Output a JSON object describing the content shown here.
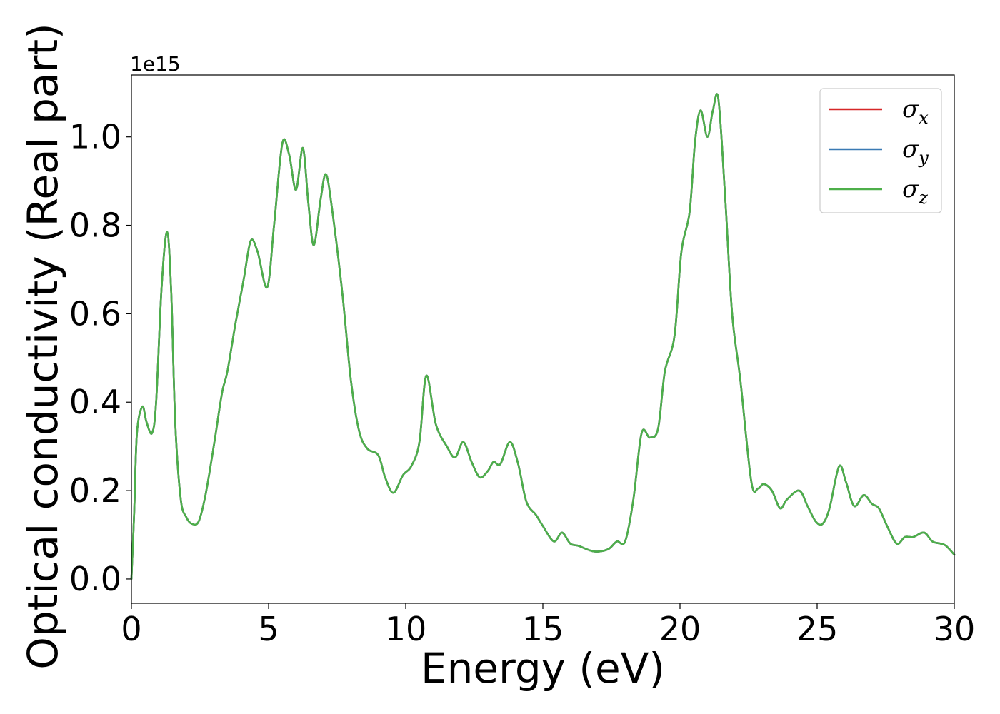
{
  "chart_data": {
    "type": "line",
    "title": "",
    "xlabel": "Energy (eV)",
    "ylabel": "Optical conductivity (Real part)",
    "y_offset_label": "1e15",
    "xlim": [
      0,
      30
    ],
    "ylim": [
      -0.055,
      1.14
    ],
    "xticks": [
      0,
      5,
      10,
      15,
      20,
      25,
      30
    ],
    "xtick_labels": [
      "0",
      "5",
      "10",
      "15",
      "20",
      "25",
      "30"
    ],
    "yticks": [
      0.0,
      0.2,
      0.4,
      0.6,
      0.8,
      1.0
    ],
    "ytick_labels": [
      "0.0",
      "0.2",
      "0.4",
      "0.6",
      "0.8",
      "1.0"
    ],
    "grid": false,
    "legend_position": "top-right",
    "x": [
      0,
      0.1,
      0.2,
      0.4,
      0.55,
      0.75,
      0.9,
      1.1,
      1.3,
      1.45,
      1.6,
      1.8,
      2.0,
      2.2,
      2.45,
      2.7,
      3.0,
      3.3,
      3.5,
      3.8,
      4.1,
      4.35,
      4.6,
      4.95,
      5.2,
      5.5,
      5.75,
      6.0,
      6.25,
      6.45,
      6.65,
      6.9,
      7.1,
      7.35,
      7.7,
      8.0,
      8.3,
      8.6,
      9.0,
      9.25,
      9.55,
      9.9,
      10.2,
      10.5,
      10.75,
      11.1,
      11.5,
      11.8,
      12.1,
      12.4,
      12.7,
      13.0,
      13.2,
      13.45,
      13.8,
      14.1,
      14.4,
      14.75,
      15.0,
      15.4,
      15.7,
      16.0,
      16.3,
      16.7,
      17.0,
      17.4,
      17.7,
      18.0,
      18.3,
      18.6,
      18.9,
      19.2,
      19.45,
      19.8,
      20.05,
      20.35,
      20.55,
      20.75,
      21.0,
      21.2,
      21.4,
      21.65,
      21.9,
      22.2,
      22.6,
      22.85,
      23.05,
      23.35,
      23.65,
      23.9,
      24.35,
      24.65,
      24.95,
      25.2,
      25.45,
      25.8,
      26.05,
      26.35,
      26.7,
      27.0,
      27.25,
      27.55,
      27.9,
      28.2,
      28.5,
      28.9,
      29.2,
      29.5,
      29.7,
      30.0
    ],
    "series": [
      {
        "name": "x",
        "color": "#d62728",
        "values": [
          0.0,
          0.15,
          0.33,
          0.39,
          0.355,
          0.33,
          0.4,
          0.66,
          0.785,
          0.65,
          0.35,
          0.18,
          0.14,
          0.125,
          0.13,
          0.19,
          0.3,
          0.42,
          0.47,
          0.58,
          0.68,
          0.765,
          0.74,
          0.66,
          0.8,
          0.985,
          0.96,
          0.88,
          0.975,
          0.85,
          0.755,
          0.86,
          0.915,
          0.82,
          0.64,
          0.45,
          0.335,
          0.295,
          0.28,
          0.23,
          0.195,
          0.235,
          0.255,
          0.31,
          0.46,
          0.35,
          0.3,
          0.275,
          0.31,
          0.265,
          0.23,
          0.245,
          0.265,
          0.26,
          0.31,
          0.26,
          0.175,
          0.145,
          0.12,
          0.085,
          0.105,
          0.08,
          0.075,
          0.065,
          0.062,
          0.068,
          0.085,
          0.085,
          0.18,
          0.33,
          0.32,
          0.34,
          0.47,
          0.55,
          0.74,
          0.83,
          0.99,
          1.06,
          1.0,
          1.06,
          1.085,
          0.86,
          0.6,
          0.45,
          0.22,
          0.205,
          0.215,
          0.2,
          0.16,
          0.18,
          0.2,
          0.165,
          0.13,
          0.125,
          0.16,
          0.255,
          0.22,
          0.165,
          0.19,
          0.17,
          0.16,
          0.12,
          0.08,
          0.095,
          0.095,
          0.105,
          0.085,
          0.08,
          0.075,
          0.055
        ]
      },
      {
        "name": "y",
        "color": "#3a7ab4",
        "values": [
          0.0,
          0.15,
          0.33,
          0.39,
          0.355,
          0.33,
          0.4,
          0.66,
          0.785,
          0.65,
          0.35,
          0.18,
          0.14,
          0.125,
          0.13,
          0.19,
          0.3,
          0.42,
          0.47,
          0.58,
          0.68,
          0.765,
          0.74,
          0.66,
          0.8,
          0.985,
          0.96,
          0.88,
          0.975,
          0.85,
          0.755,
          0.86,
          0.915,
          0.82,
          0.64,
          0.45,
          0.335,
          0.295,
          0.28,
          0.23,
          0.195,
          0.235,
          0.255,
          0.31,
          0.46,
          0.35,
          0.3,
          0.275,
          0.31,
          0.265,
          0.23,
          0.245,
          0.265,
          0.26,
          0.31,
          0.26,
          0.175,
          0.145,
          0.12,
          0.085,
          0.105,
          0.08,
          0.075,
          0.065,
          0.062,
          0.068,
          0.085,
          0.085,
          0.18,
          0.33,
          0.32,
          0.34,
          0.47,
          0.55,
          0.74,
          0.83,
          0.99,
          1.06,
          1.0,
          1.06,
          1.085,
          0.86,
          0.6,
          0.45,
          0.22,
          0.205,
          0.215,
          0.2,
          0.16,
          0.18,
          0.2,
          0.165,
          0.13,
          0.125,
          0.16,
          0.255,
          0.22,
          0.165,
          0.19,
          0.17,
          0.16,
          0.12,
          0.08,
          0.095,
          0.095,
          0.105,
          0.085,
          0.08,
          0.075,
          0.055
        ]
      },
      {
        "name": "z",
        "color": "#4daf4a",
        "values": [
          0.0,
          0.15,
          0.33,
          0.39,
          0.355,
          0.33,
          0.4,
          0.66,
          0.785,
          0.65,
          0.35,
          0.18,
          0.14,
          0.125,
          0.13,
          0.19,
          0.3,
          0.42,
          0.47,
          0.58,
          0.68,
          0.765,
          0.74,
          0.66,
          0.8,
          0.985,
          0.96,
          0.88,
          0.975,
          0.85,
          0.755,
          0.86,
          0.915,
          0.82,
          0.64,
          0.45,
          0.335,
          0.295,
          0.28,
          0.23,
          0.195,
          0.235,
          0.255,
          0.31,
          0.46,
          0.35,
          0.3,
          0.275,
          0.31,
          0.265,
          0.23,
          0.245,
          0.265,
          0.26,
          0.31,
          0.26,
          0.175,
          0.145,
          0.12,
          0.085,
          0.105,
          0.08,
          0.075,
          0.065,
          0.062,
          0.068,
          0.085,
          0.085,
          0.18,
          0.33,
          0.32,
          0.34,
          0.47,
          0.55,
          0.74,
          0.83,
          0.99,
          1.06,
          1.0,
          1.06,
          1.085,
          0.86,
          0.6,
          0.45,
          0.22,
          0.205,
          0.215,
          0.2,
          0.16,
          0.18,
          0.2,
          0.165,
          0.13,
          0.125,
          0.16,
          0.255,
          0.22,
          0.165,
          0.19,
          0.17,
          0.16,
          0.12,
          0.08,
          0.095,
          0.095,
          0.105,
          0.085,
          0.08,
          0.075,
          0.055
        ]
      }
    ],
    "legend": [
      {
        "symbol": "σ",
        "subscript": "x",
        "color": "#d62728"
      },
      {
        "symbol": "σ",
        "subscript": "y",
        "color": "#3a7ab4"
      },
      {
        "symbol": "σ",
        "subscript": "z",
        "color": "#4daf4a"
      }
    ]
  }
}
